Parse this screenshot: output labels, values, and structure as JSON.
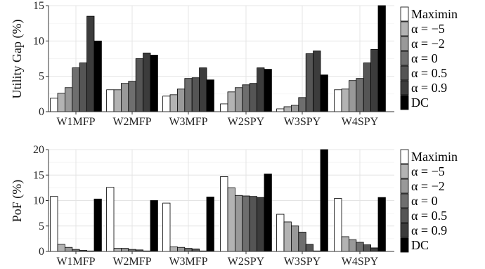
{
  "colors": [
    "#ffffff",
    "#b3b3b3",
    "#999999",
    "#6e6e6e",
    "#555555",
    "#3c3c3c",
    "#000000"
  ],
  "legend_labels": [
    "Maximin",
    "α = −5",
    "α = −2",
    "α = 0",
    "α = 0.5",
    "α = 0.9",
    "DC"
  ],
  "chart_data": [
    {
      "type": "bar",
      "ylabel": "Utility Gap (%)",
      "ylim": [
        0,
        15
      ],
      "yticks": [
        0,
        5,
        10,
        15
      ],
      "grid": true,
      "legend_position": "right",
      "categories": [
        "W1MFP",
        "W2MFP",
        "W3MFP",
        "W2SPY",
        "W3SPY",
        "W4SPY"
      ],
      "series": [
        {
          "name": "Maximin",
          "values": [
            1.9,
            3.1,
            2.2,
            1.1,
            0.4,
            3.1
          ]
        },
        {
          "name": "α = −5",
          "values": [
            2.6,
            3.1,
            2.4,
            2.8,
            0.7,
            3.2
          ]
        },
        {
          "name": "α = −2",
          "values": [
            3.4,
            4.0,
            3.2,
            3.4,
            0.9,
            4.4
          ]
        },
        {
          "name": "α = 0",
          "values": [
            6.2,
            4.3,
            4.7,
            3.8,
            2.0,
            4.7
          ]
        },
        {
          "name": "α = 0.5",
          "values": [
            6.9,
            7.5,
            4.8,
            4.0,
            8.2,
            6.9
          ]
        },
        {
          "name": "α = 0.9",
          "values": [
            13.5,
            8.3,
            6.2,
            6.2,
            8.6,
            8.8
          ]
        },
        {
          "name": "DC",
          "values": [
            10.0,
            8.0,
            4.5,
            6.0,
            5.2,
            15.0
          ]
        }
      ]
    },
    {
      "type": "bar",
      "ylabel": "PoF (%)",
      "ylim": [
        0,
        20
      ],
      "yticks": [
        0,
        5,
        10,
        15,
        20
      ],
      "grid": true,
      "legend_position": "right",
      "categories": [
        "W1MFP",
        "W2MFP",
        "W3MFP",
        "W2SPY",
        "W3SPY",
        "W4SPY"
      ],
      "series": [
        {
          "name": "Maximin",
          "values": [
            10.8,
            12.6,
            9.5,
            14.7,
            7.3,
            10.4
          ]
        },
        {
          "name": "α = −5",
          "values": [
            1.4,
            0.6,
            0.9,
            12.5,
            5.8,
            2.9
          ]
        },
        {
          "name": "α = −2",
          "values": [
            0.8,
            0.6,
            0.8,
            11.0,
            5.0,
            2.3
          ]
        },
        {
          "name": "α = 0",
          "values": [
            0.4,
            0.4,
            0.6,
            10.9,
            3.8,
            1.8
          ]
        },
        {
          "name": "α = 0.5",
          "values": [
            0.2,
            0.3,
            0.5,
            10.8,
            1.4,
            1.3
          ]
        },
        {
          "name": "α = 0.9",
          "values": [
            0.1,
            0.1,
            0.1,
            10.6,
            0.1,
            0.7
          ]
        },
        {
          "name": "DC",
          "values": [
            10.3,
            10.0,
            10.7,
            15.2,
            20.0,
            10.6
          ]
        }
      ]
    }
  ]
}
